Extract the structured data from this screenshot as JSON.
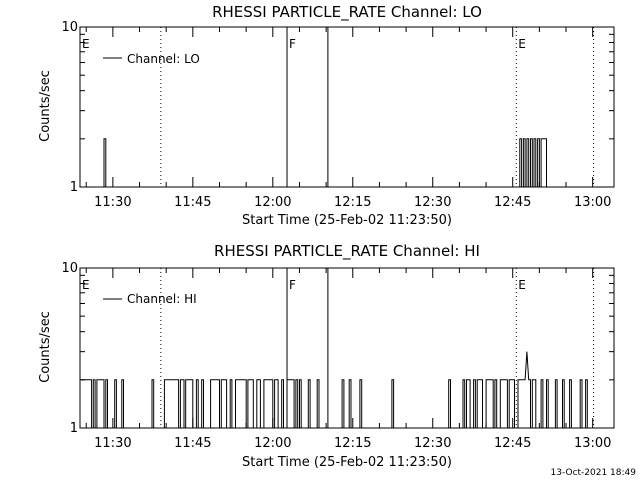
{
  "chart_data": [
    {
      "type": "line",
      "title": "RHESSI PARTICLE_RATE Channel: LO",
      "xlabel": "Start Time (25-Feb-02 11:23:50)",
      "ylabel": "Counts/sec",
      "yscale": "log",
      "ylim": [
        1,
        10
      ],
      "ytick_labels": [
        "1",
        "10"
      ],
      "xlim": [
        "11:23:50",
        "13:04:00"
      ],
      "xtick_labels": [
        "11:30",
        "11:45",
        "12:00",
        "12:15",
        "12:30",
        "12:45",
        "13:00"
      ],
      "legend": {
        "position": "top-left",
        "entries": [
          "Channel: LO"
        ]
      },
      "markers": [
        {
          "time": "11:23:50",
          "label": "E",
          "style": "dotted"
        },
        {
          "time": "11:39:00",
          "label": "",
          "style": "dotted"
        },
        {
          "time": "12:02:40",
          "label": "F",
          "style": "solid"
        },
        {
          "time": "12:10:20",
          "label": "",
          "style": "solid"
        },
        {
          "time": "12:45:40",
          "label": "E",
          "style": "dotted"
        },
        {
          "time": "13:00:10",
          "label": "",
          "style": "dotted"
        }
      ],
      "series": [
        {
          "values": [
            [
              "11:28:20",
              1
            ],
            [
              "11:28:20",
              2
            ],
            [
              "11:28:40",
              2
            ],
            [
              "11:28:40",
              1
            ],
            [
              "12:46:20",
              1
            ],
            [
              "12:46:20",
              2
            ],
            [
              "12:46:40",
              2
            ],
            [
              "12:46:40",
              1
            ],
            [
              "12:47:00",
              1
            ],
            [
              "12:47:00",
              2
            ],
            [
              "12:47:20",
              2
            ],
            [
              "12:47:20",
              1
            ],
            [
              "12:47:40",
              1
            ],
            [
              "12:47:40",
              2
            ],
            [
              "12:48:00",
              2
            ],
            [
              "12:48:00",
              1
            ],
            [
              "12:48:20",
              1
            ],
            [
              "12:48:20",
              2
            ],
            [
              "12:48:40",
              2
            ],
            [
              "12:48:40",
              1
            ],
            [
              "12:49:00",
              1
            ],
            [
              "12:49:00",
              2
            ],
            [
              "12:49:20",
              2
            ],
            [
              "12:49:20",
              1
            ],
            [
              "12:49:40",
              1
            ],
            [
              "12:49:40",
              2
            ],
            [
              "12:50:00",
              2
            ],
            [
              "12:50:00",
              1
            ],
            [
              "12:50:20",
              1
            ],
            [
              "12:50:20",
              2
            ],
            [
              "12:51:20",
              2
            ],
            [
              "12:51:20",
              1
            ]
          ]
        }
      ]
    },
    {
      "type": "line",
      "title": "RHESSI PARTICLE_RATE Channel: HI",
      "xlabel": "Start Time (25-Feb-02 11:23:50)",
      "ylabel": "Counts/sec",
      "yscale": "log",
      "ylim": [
        1,
        10
      ],
      "ytick_labels": [
        "1",
        "10"
      ],
      "xlim": [
        "11:23:50",
        "13:04:00"
      ],
      "xtick_labels": [
        "11:30",
        "11:45",
        "12:00",
        "12:15",
        "12:30",
        "12:45",
        "13:00"
      ],
      "legend": {
        "position": "top-left",
        "entries": [
          "Channel: HI"
        ]
      },
      "markers": [
        {
          "time": "11:23:50",
          "label": "E",
          "style": "dotted"
        },
        {
          "time": "11:39:00",
          "label": "",
          "style": "dotted"
        },
        {
          "time": "12:02:40",
          "label": "F",
          "style": "solid"
        },
        {
          "time": "12:10:20",
          "label": "",
          "style": "solid"
        },
        {
          "time": "12:45:40",
          "label": "E",
          "style": "dotted"
        },
        {
          "time": "13:00:10",
          "label": "",
          "style": "dotted"
        }
      ],
      "series": [
        {
          "values": [
            [
              "11:24:00",
              2
            ],
            [
              "11:26:00",
              2
            ],
            [
              "11:26:00",
              1
            ],
            [
              "11:26:20",
              1
            ],
            [
              "11:26:20",
              2
            ],
            [
              "11:26:40",
              2
            ],
            [
              "11:26:40",
              1
            ],
            [
              "11:27:00",
              1
            ],
            [
              "11:27:00",
              2
            ],
            [
              "11:28:20",
              2
            ],
            [
              "11:28:20",
              1
            ],
            [
              "11:28:40",
              1
            ],
            [
              "11:28:40",
              2
            ],
            [
              "11:29:00",
              2
            ],
            [
              "11:29:00",
              1
            ],
            [
              "11:30:20",
              1
            ],
            [
              "11:30:20",
              2
            ],
            [
              "11:30:40",
              2
            ],
            [
              "11:30:40",
              1
            ],
            [
              "11:31:40",
              1
            ],
            [
              "11:31:40",
              2
            ],
            [
              "11:32:00",
              2
            ],
            [
              "11:32:00",
              1
            ],
            [
              "11:37:20",
              1
            ],
            [
              "11:37:20",
              2
            ],
            [
              "11:37:40",
              2
            ],
            [
              "11:37:40",
              1
            ],
            [
              "11:39:40",
              1
            ],
            [
              "11:39:40",
              2
            ],
            [
              "11:42:20",
              2
            ],
            [
              "11:42:20",
              1
            ],
            [
              "11:42:40",
              1
            ],
            [
              "11:42:40",
              2
            ],
            [
              "11:43:20",
              2
            ],
            [
              "11:43:20",
              1
            ],
            [
              "11:43:40",
              1
            ],
            [
              "11:43:40",
              2
            ],
            [
              "11:45:00",
              2
            ],
            [
              "11:45:00",
              1
            ],
            [
              "11:45:40",
              1
            ],
            [
              "11:45:40",
              2
            ],
            [
              "11:46:00",
              2
            ],
            [
              "11:46:00",
              1
            ],
            [
              "11:46:40",
              1
            ],
            [
              "11:46:40",
              2
            ],
            [
              "11:47:00",
              2
            ],
            [
              "11:47:00",
              1
            ],
            [
              "11:48:20",
              1
            ],
            [
              "11:48:20",
              2
            ],
            [
              "11:50:00",
              2
            ],
            [
              "11:50:00",
              1
            ],
            [
              "11:50:20",
              1
            ],
            [
              "11:50:20",
              2
            ],
            [
              "11:51:20",
              2
            ],
            [
              "11:51:20",
              1
            ],
            [
              "11:52:00",
              1
            ],
            [
              "11:52:00",
              2
            ],
            [
              "11:52:20",
              2
            ],
            [
              "11:52:20",
              1
            ],
            [
              "11:53:00",
              1
            ],
            [
              "11:53:00",
              2
            ],
            [
              "11:55:00",
              2
            ],
            [
              "11:55:00",
              1
            ],
            [
              "11:55:20",
              1
            ],
            [
              "11:55:20",
              2
            ],
            [
              "11:56:20",
              2
            ],
            [
              "11:56:20",
              1
            ],
            [
              "11:57:00",
              1
            ],
            [
              "11:57:00",
              2
            ],
            [
              "11:57:40",
              2
            ],
            [
              "11:57:40",
              1
            ],
            [
              "11:58:20",
              1
            ],
            [
              "11:58:20",
              2
            ],
            [
              "12:00:00",
              2
            ],
            [
              "12:00:00",
              1
            ],
            [
              "12:00:20",
              1
            ],
            [
              "12:00:20",
              2
            ],
            [
              "12:01:00",
              2
            ],
            [
              "12:01:00",
              1
            ],
            [
              "12:01:40",
              1
            ],
            [
              "12:01:40",
              2
            ],
            [
              "12:02:00",
              2
            ],
            [
              "12:02:00",
              1
            ],
            [
              "12:02:40",
              1
            ],
            [
              "12:02:40",
              2
            ],
            [
              "12:04:00",
              2
            ],
            [
              "12:04:00",
              1
            ],
            [
              "12:04:20",
              1
            ],
            [
              "12:04:20",
              2
            ],
            [
              "12:04:40",
              2
            ],
            [
              "12:04:40",
              1
            ],
            [
              "12:05:00",
              1
            ],
            [
              "12:05:00",
              2
            ],
            [
              "12:05:20",
              2
            ],
            [
              "12:05:20",
              1
            ],
            [
              "12:06:40",
              1
            ],
            [
              "12:06:40",
              2
            ],
            [
              "12:07:00",
              2
            ],
            [
              "12:07:00",
              1
            ],
            [
              "12:08:20",
              1
            ],
            [
              "12:08:20",
              2
            ],
            [
              "12:08:40",
              2
            ],
            [
              "12:08:40",
              1
            ],
            [
              "12:13:00",
              1
            ],
            [
              "12:13:00",
              2
            ],
            [
              "12:13:20",
              2
            ],
            [
              "12:13:20",
              1
            ],
            [
              "12:14:20",
              1
            ],
            [
              "12:14:20",
              2
            ],
            [
              "12:14:40",
              2
            ],
            [
              "12:14:40",
              1
            ],
            [
              "12:16:20",
              1
            ],
            [
              "12:16:20",
              2
            ],
            [
              "12:16:40",
              2
            ],
            [
              "12:16:40",
              1
            ],
            [
              "12:22:20",
              1
            ],
            [
              "12:22:20",
              2
            ],
            [
              "12:22:40",
              2
            ],
            [
              "12:22:40",
              1
            ],
            [
              "12:33:00",
              1
            ],
            [
              "12:33:00",
              2
            ],
            [
              "12:33:20",
              2
            ],
            [
              "12:33:20",
              1
            ],
            [
              "12:35:40",
              1
            ],
            [
              "12:35:40",
              2
            ],
            [
              "12:36:00",
              2
            ],
            [
              "12:36:00",
              1
            ],
            [
              "12:36:20",
              1
            ],
            [
              "12:36:20",
              2
            ],
            [
              "12:37:00",
              2
            ],
            [
              "12:37:00",
              1
            ],
            [
              "12:37:40",
              1
            ],
            [
              "12:37:40",
              2
            ],
            [
              "12:38:00",
              2
            ],
            [
              "12:38:00",
              1
            ],
            [
              "12:38:20",
              1
            ],
            [
              "12:38:20",
              2
            ],
            [
              "12:39:20",
              2
            ],
            [
              "12:39:20",
              1
            ],
            [
              "12:40:00",
              1
            ],
            [
              "12:40:00",
              2
            ],
            [
              "12:41:20",
              2
            ],
            [
              "12:41:20",
              1
            ],
            [
              "12:41:40",
              1
            ],
            [
              "12:41:40",
              2
            ],
            [
              "12:42:00",
              2
            ],
            [
              "12:42:00",
              1
            ],
            [
              "12:42:40",
              1
            ],
            [
              "12:42:40",
              2
            ],
            [
              "12:44:00",
              2
            ],
            [
              "12:44:00",
              1
            ],
            [
              "12:44:20",
              1
            ],
            [
              "12:44:20",
              2
            ],
            [
              "12:45:20",
              2
            ],
            [
              "12:45:20",
              1
            ],
            [
              "12:46:00",
              1
            ],
            [
              "12:46:00",
              2
            ],
            [
              "12:47:20",
              2
            ],
            [
              "12:47:40",
              3
            ],
            [
              "12:48:00",
              2
            ],
            [
              "12:48:20",
              2
            ],
            [
              "12:48:20",
              1
            ],
            [
              "12:48:40",
              1
            ],
            [
              "12:48:40",
              2
            ],
            [
              "12:49:20",
              2
            ],
            [
              "12:49:20",
              1
            ],
            [
              "12:50:20",
              1
            ],
            [
              "12:50:20",
              2
            ],
            [
              "12:50:40",
              2
            ],
            [
              "12:50:40",
              1
            ],
            [
              "12:51:20",
              1
            ],
            [
              "12:51:20",
              2
            ],
            [
              "12:51:40",
              2
            ],
            [
              "12:51:40",
              1
            ],
            [
              "12:53:00",
              1
            ],
            [
              "12:53:00",
              2
            ],
            [
              "12:53:20",
              2
            ],
            [
              "12:53:20",
              1
            ],
            [
              "12:54:20",
              1
            ],
            [
              "12:54:20",
              2
            ],
            [
              "12:54:40",
              2
            ],
            [
              "12:54:40",
              1
            ],
            [
              "12:55:40",
              1
            ],
            [
              "12:55:40",
              2
            ],
            [
              "12:56:00",
              2
            ],
            [
              "12:56:00",
              1
            ],
            [
              "12:57:40",
              1
            ],
            [
              "12:57:40",
              2
            ],
            [
              "12:58:00",
              2
            ],
            [
              "12:58:00",
              1
            ],
            [
              "12:58:40",
              1
            ],
            [
              "12:58:40",
              2
            ],
            [
              "12:59:00",
              2
            ],
            [
              "12:59:00",
              1
            ]
          ]
        }
      ]
    }
  ],
  "footer": {
    "timestamp": "13-Oct-2021 18:49"
  }
}
